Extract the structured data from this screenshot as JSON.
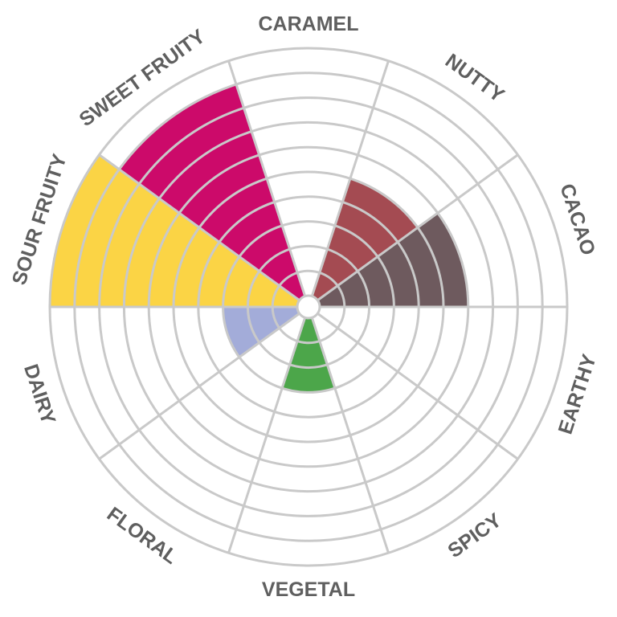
{
  "chart_data": {
    "type": "radial-bar",
    "title": "",
    "scale": {
      "min": 0,
      "max": 10,
      "rings": 10
    },
    "grid": true,
    "categories": [
      "CARAMEL",
      "NUTTY",
      "CACAO",
      "EARTHY",
      "SPICY",
      "VEGETAL",
      "FLORAL",
      "DAIRY",
      "SOUR FRUITY",
      "SWEET FRUITY"
    ],
    "values": [
      0,
      5,
      6,
      0,
      0,
      3,
      0,
      3,
      10,
      9
    ],
    "colors": [
      "#ffffff",
      "#a44b52",
      "#6e5a5e",
      "#ffffff",
      "#ffffff",
      "#4ca64a",
      "#ffffff",
      "#a3acd9",
      "#fbd445",
      "#cc0a6a"
    ]
  }
}
